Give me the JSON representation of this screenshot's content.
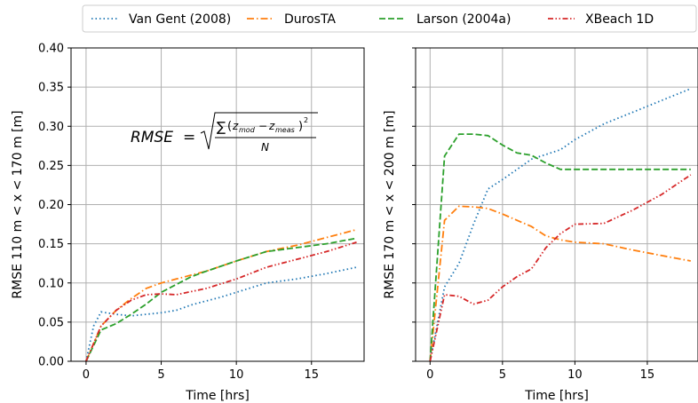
{
  "legend": {
    "items": [
      {
        "label": "Van Gent (2008)",
        "color": "#1f77b4",
        "dash": "dotted"
      },
      {
        "label": "DurosTA",
        "color": "#ff7f0e",
        "dash": "dashdot"
      },
      {
        "label": "Larson (2004a)",
        "color": "#2ca02c",
        "dash": "dashed"
      },
      {
        "label": "XBeach 1D",
        "color": "#d62728",
        "dash": "dashdotdot"
      }
    ],
    "placement": "top"
  },
  "formula": {
    "lhs": "RMSE",
    "eq": "=",
    "sum": "∑",
    "open_paren": "(",
    "z_mod_base": "z",
    "z_mod_sub": "mod",
    "minus": "−",
    "z_meas_base": "z",
    "z_meas_sub": "meas",
    "close_paren": ")",
    "power": "2",
    "denominator": "N"
  },
  "chart_data": [
    {
      "type": "line",
      "xlabel": "Time [hrs]",
      "ylabel": "RMSE 110 m < x < 170 m [m]",
      "xlim": [
        -1,
        18.5
      ],
      "ylim": [
        0,
        0.4
      ],
      "xticks": [
        0,
        5,
        10,
        15
      ],
      "yticks": [
        0.0,
        0.05,
        0.1,
        0.15,
        0.2,
        0.25,
        0.3,
        0.35,
        0.4
      ],
      "ytick_labels": [
        "0.00",
        "0.05",
        "0.10",
        "0.15",
        "0.20",
        "0.25",
        "0.30",
        "0.35",
        "0.40"
      ],
      "grid": true,
      "series": [
        {
          "name": "Van Gent (2008)",
          "x": [
            0,
            0.5,
            1,
            2,
            3,
            4,
            5,
            6,
            7,
            8,
            9,
            10,
            12,
            14,
            16,
            18
          ],
          "y": [
            0.0,
            0.045,
            0.063,
            0.06,
            0.058,
            0.06,
            0.062,
            0.065,
            0.072,
            0.077,
            0.082,
            0.088,
            0.1,
            0.105,
            0.112,
            0.12
          ]
        },
        {
          "name": "DurosTA",
          "x": [
            0,
            1,
            2,
            3,
            4,
            5,
            6,
            8,
            10,
            12,
            14,
            16,
            18
          ],
          "y": [
            0.0,
            0.045,
            0.065,
            0.08,
            0.093,
            0.1,
            0.105,
            0.115,
            0.128,
            0.14,
            0.148,
            0.158,
            0.168
          ]
        },
        {
          "name": "Larson (2004a)",
          "x": [
            0,
            1,
            2,
            3,
            4,
            5,
            6,
            7,
            8,
            10,
            12,
            14,
            16,
            18
          ],
          "y": [
            0.0,
            0.04,
            0.048,
            0.06,
            0.073,
            0.088,
            0.098,
            0.108,
            0.115,
            0.128,
            0.14,
            0.145,
            0.15,
            0.157
          ]
        },
        {
          "name": "XBeach 1D",
          "x": [
            0,
            1,
            2,
            3,
            4,
            5,
            6,
            8,
            10,
            12,
            14,
            16,
            18
          ],
          "y": [
            0.0,
            0.045,
            0.065,
            0.078,
            0.085,
            0.086,
            0.085,
            0.093,
            0.105,
            0.12,
            0.13,
            0.14,
            0.152
          ]
        }
      ]
    },
    {
      "type": "line",
      "xlabel": "Time [hrs]",
      "ylabel": "RMSE 170 m < x < 200 m [m]",
      "xlim": [
        -1,
        18.5
      ],
      "ylim": [
        0,
        0.4
      ],
      "xticks": [
        0,
        5,
        10,
        15
      ],
      "grid": true,
      "series": [
        {
          "name": "Van Gent (2008)",
          "x": [
            0,
            1,
            2,
            3,
            4,
            5,
            6,
            7,
            8,
            9,
            10,
            12,
            14,
            16,
            18
          ],
          "y": [
            0.0,
            0.095,
            0.125,
            0.175,
            0.22,
            0.232,
            0.245,
            0.258,
            0.264,
            0.27,
            0.283,
            0.303,
            0.318,
            0.333,
            0.348
          ]
        },
        {
          "name": "DurosTA",
          "x": [
            0,
            1,
            2,
            3,
            4,
            5,
            6,
            7,
            8,
            9,
            10,
            12,
            14,
            16,
            18
          ],
          "y": [
            0.0,
            0.18,
            0.198,
            0.197,
            0.195,
            0.188,
            0.18,
            0.172,
            0.16,
            0.155,
            0.152,
            0.15,
            0.142,
            0.135,
            0.128
          ]
        },
        {
          "name": "Larson (2004a)",
          "x": [
            0,
            1,
            2,
            3,
            4,
            5,
            6,
            7,
            8,
            9,
            10,
            12,
            14,
            16,
            18
          ],
          "y": [
            0.0,
            0.262,
            0.29,
            0.29,
            0.288,
            0.276,
            0.266,
            0.263,
            0.253,
            0.245,
            0.245,
            0.245,
            0.245,
            0.245,
            0.245
          ]
        },
        {
          "name": "XBeach 1D",
          "x": [
            0,
            1,
            2,
            3,
            4,
            5,
            6,
            7,
            8,
            9,
            10,
            12,
            14,
            16,
            18
          ],
          "y": [
            0.0,
            0.085,
            0.083,
            0.073,
            0.078,
            0.095,
            0.108,
            0.118,
            0.145,
            0.163,
            0.175,
            0.176,
            0.193,
            0.213,
            0.238
          ]
        }
      ]
    }
  ]
}
